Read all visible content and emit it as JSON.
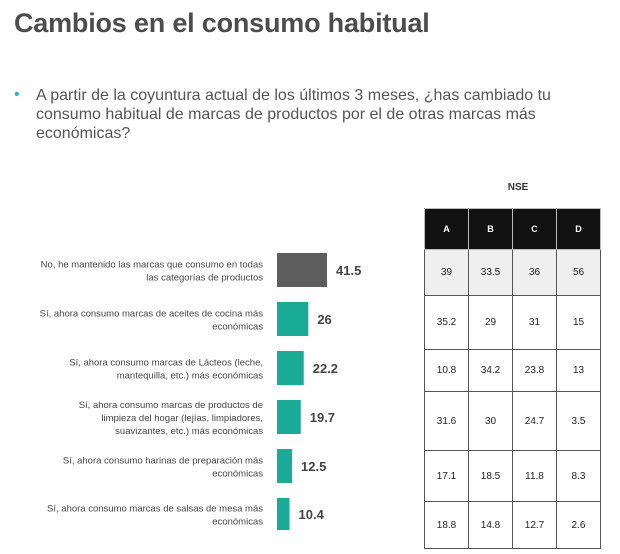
{
  "title": "Cambios en el consumo habitual",
  "question": "A partir de la coyuntura actual de los últimos 3 meses, ¿has cambiado tu consumo habitual de marcas de productos por el de otras marcas más económicas?",
  "bullet_glyph": "•",
  "colors": {
    "gray_bar": "#5e5e5e",
    "teal_bar": "#1aab96",
    "bullet": "#2eb3c9"
  },
  "chart_data": {
    "type": "bar",
    "orientation": "horizontal",
    "categories": [
      [
        "No, he mantenido las marcas que consumo en todas",
        "las categorías de productos"
      ],
      [
        "Sí, ahora consumo marcas de aceites de cocina más",
        "económicas"
      ],
      [
        "Sí, ahora consumo marcas de Lácteos (leche,",
        "mantequilla, etc.) más económicas"
      ],
      [
        "Sí, ahora consumo marcas de productos de",
        "limpieza del hogar (lejías, limpiadores,",
        "suavizantes,  etc.) más económicas"
      ],
      [
        "Sí, ahora consumo harinas de preparación más",
        "económicas"
      ],
      [
        "Sí, ahora consumo marcas de salsas de mesa más",
        "económicas"
      ]
    ],
    "values": [
      41.5,
      26,
      22.2,
      19.7,
      12.5,
      10.4
    ],
    "value_labels": [
      "41.5",
      "26",
      "22.2",
      "19.7",
      "12.5",
      "10.4"
    ],
    "bar_colors": [
      "#5e5e5e",
      "#1aab96",
      "#1aab96",
      "#1aab96",
      "#1aab96",
      "#1aab96"
    ]
  },
  "nse_table": {
    "label": "NSE",
    "headers": [
      "A",
      "B",
      "C",
      "D"
    ],
    "rows": [
      [
        "39",
        "33.5",
        "36",
        "56"
      ],
      [
        "35.2",
        "29",
        "31",
        "15"
      ],
      [
        "10.8",
        "34.2",
        "23.8",
        "13"
      ],
      [
        "31.6",
        "30",
        "24.7",
        "3.5"
      ],
      [
        "17.1",
        "18.5",
        "11.8",
        "8.3"
      ],
      [
        "18.8",
        "14.8",
        "12.7",
        "2.6"
      ]
    ]
  }
}
